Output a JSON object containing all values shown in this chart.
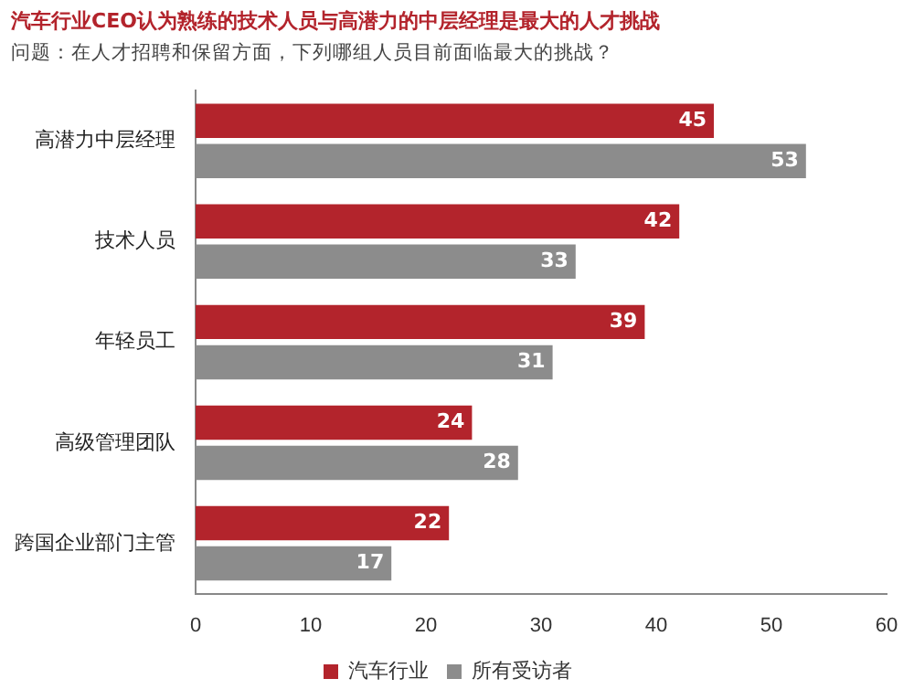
{
  "chart_data": {
    "type": "bar",
    "orientation": "horizontal",
    "title": "汽车行业CEO认为熟练的技术人员与高潜力的中层经理是最大的人才挑战",
    "subtitle": "问题：在人才招聘和保留方面，下列哪组人员目前面临最大的挑战？",
    "categories": [
      "高潜力中层经理",
      "技术人员",
      "年轻员工",
      "高级管理团队",
      "跨国企业部门主管"
    ],
    "series": [
      {
        "name": "汽车行业",
        "color": "#b3242c",
        "values": [
          45,
          42,
          39,
          24,
          22
        ]
      },
      {
        "name": "所有受访者",
        "color": "#8c8c8c",
        "values": [
          53,
          33,
          31,
          28,
          17
        ]
      }
    ],
    "xlim": [
      0,
      60
    ],
    "xticks": [
      0,
      10,
      20,
      30,
      40,
      50,
      60
    ],
    "grid": false,
    "legend": "bottom",
    "data_labels": true
  }
}
